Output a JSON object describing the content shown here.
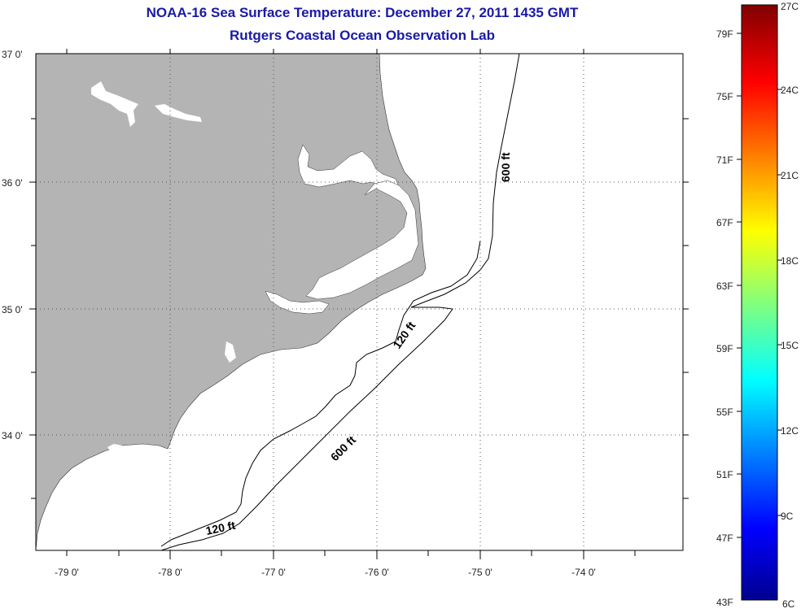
{
  "title": "NOAA-16 Sea Surface Temperature:  December 27, 2011 1435 GMT",
  "subtitle": "Rutgers Coastal Ocean Observation Lab",
  "map": {
    "lon_labels": [
      "-79 0'",
      "-78 0'",
      "-77 0'",
      "-76 0'",
      "-75 0'",
      "-74 0'"
    ],
    "lat_labels": [
      "37 0'",
      "36 0'",
      "35 0'",
      "34 0'"
    ],
    "contours": [
      "600 ft",
      "120 ft",
      "600 ft",
      "120 ft"
    ],
    "colors": {
      "land": "#b4b4b4",
      "ocean": "#ffffff",
      "isobath": "#000000"
    }
  },
  "colorbar": {
    "fahrenheit": [
      "79F",
      "75F",
      "71F",
      "67F",
      "63F",
      "59F",
      "55F",
      "51F",
      "47F",
      "43F"
    ],
    "celsius": [
      "27C",
      "24C",
      "21C",
      "18C",
      "15C",
      "12C",
      "9C",
      "6C"
    ]
  }
}
